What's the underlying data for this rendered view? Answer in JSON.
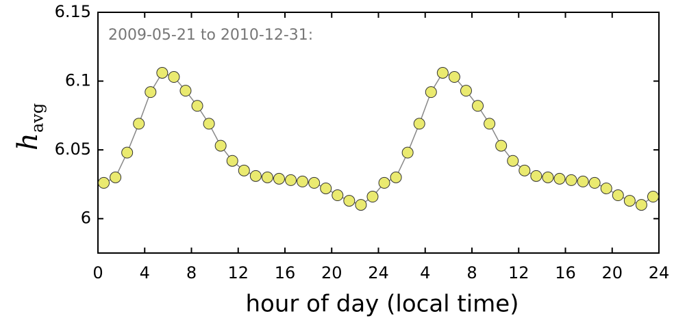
{
  "chart_data": {
    "type": "line",
    "annotation": "2009-05-21 to 2010-12-31:",
    "x_label": "hour of day (local time)",
    "y_label": "h",
    "y_label_sub": "avg",
    "x": [
      0.5,
      1.5,
      2.5,
      3.5,
      4.5,
      5.5,
      6.5,
      7.5,
      8.5,
      9.5,
      10.5,
      11.5,
      12.5,
      13.5,
      14.5,
      15.5,
      16.5,
      17.5,
      18.5,
      19.5,
      20.5,
      21.5,
      22.5,
      23.5,
      24.5,
      25.5,
      26.5,
      27.5,
      28.5,
      29.5,
      30.5,
      31.5,
      32.5,
      33.5,
      34.5,
      35.5,
      36.5,
      37.5,
      38.5,
      39.5,
      40.5,
      41.5,
      42.5,
      43.5,
      44.5,
      45.5,
      46.5,
      47.5
    ],
    "series": [
      {
        "color": "#eaea70",
        "line_color": "#888888",
        "values": [
          6.026,
          6.03,
          6.048,
          6.069,
          6.092,
          6.106,
          6.103,
          6.093,
          6.082,
          6.069,
          6.053,
          6.042,
          6.035,
          6.031,
          6.03,
          6.029,
          6.028,
          6.027,
          6.026,
          6.022,
          6.017,
          6.013,
          6.01,
          6.016,
          6.026,
          6.03,
          6.048,
          6.069,
          6.092,
          6.106,
          6.103,
          6.093,
          6.082,
          6.069,
          6.053,
          6.042,
          6.035,
          6.031,
          6.03,
          6.029,
          6.028,
          6.027,
          6.026,
          6.022,
          6.017,
          6.013,
          6.01,
          6.016
        ]
      }
    ],
    "xlim": [
      0,
      48
    ],
    "xticks": [
      0,
      4,
      8,
      12,
      16,
      20,
      24,
      {
        "value": 28,
        "label": "4"
      },
      {
        "value": 32,
        "label": "8"
      },
      {
        "value": 36,
        "label": "12"
      },
      {
        "value": 40,
        "label": "16"
      },
      {
        "value": 44,
        "label": "20"
      },
      {
        "value": 48,
        "label": "24"
      }
    ],
    "ylim": [
      5.975,
      6.15
    ],
    "yticks": [
      6,
      6.05,
      6.1,
      6.15
    ]
  }
}
